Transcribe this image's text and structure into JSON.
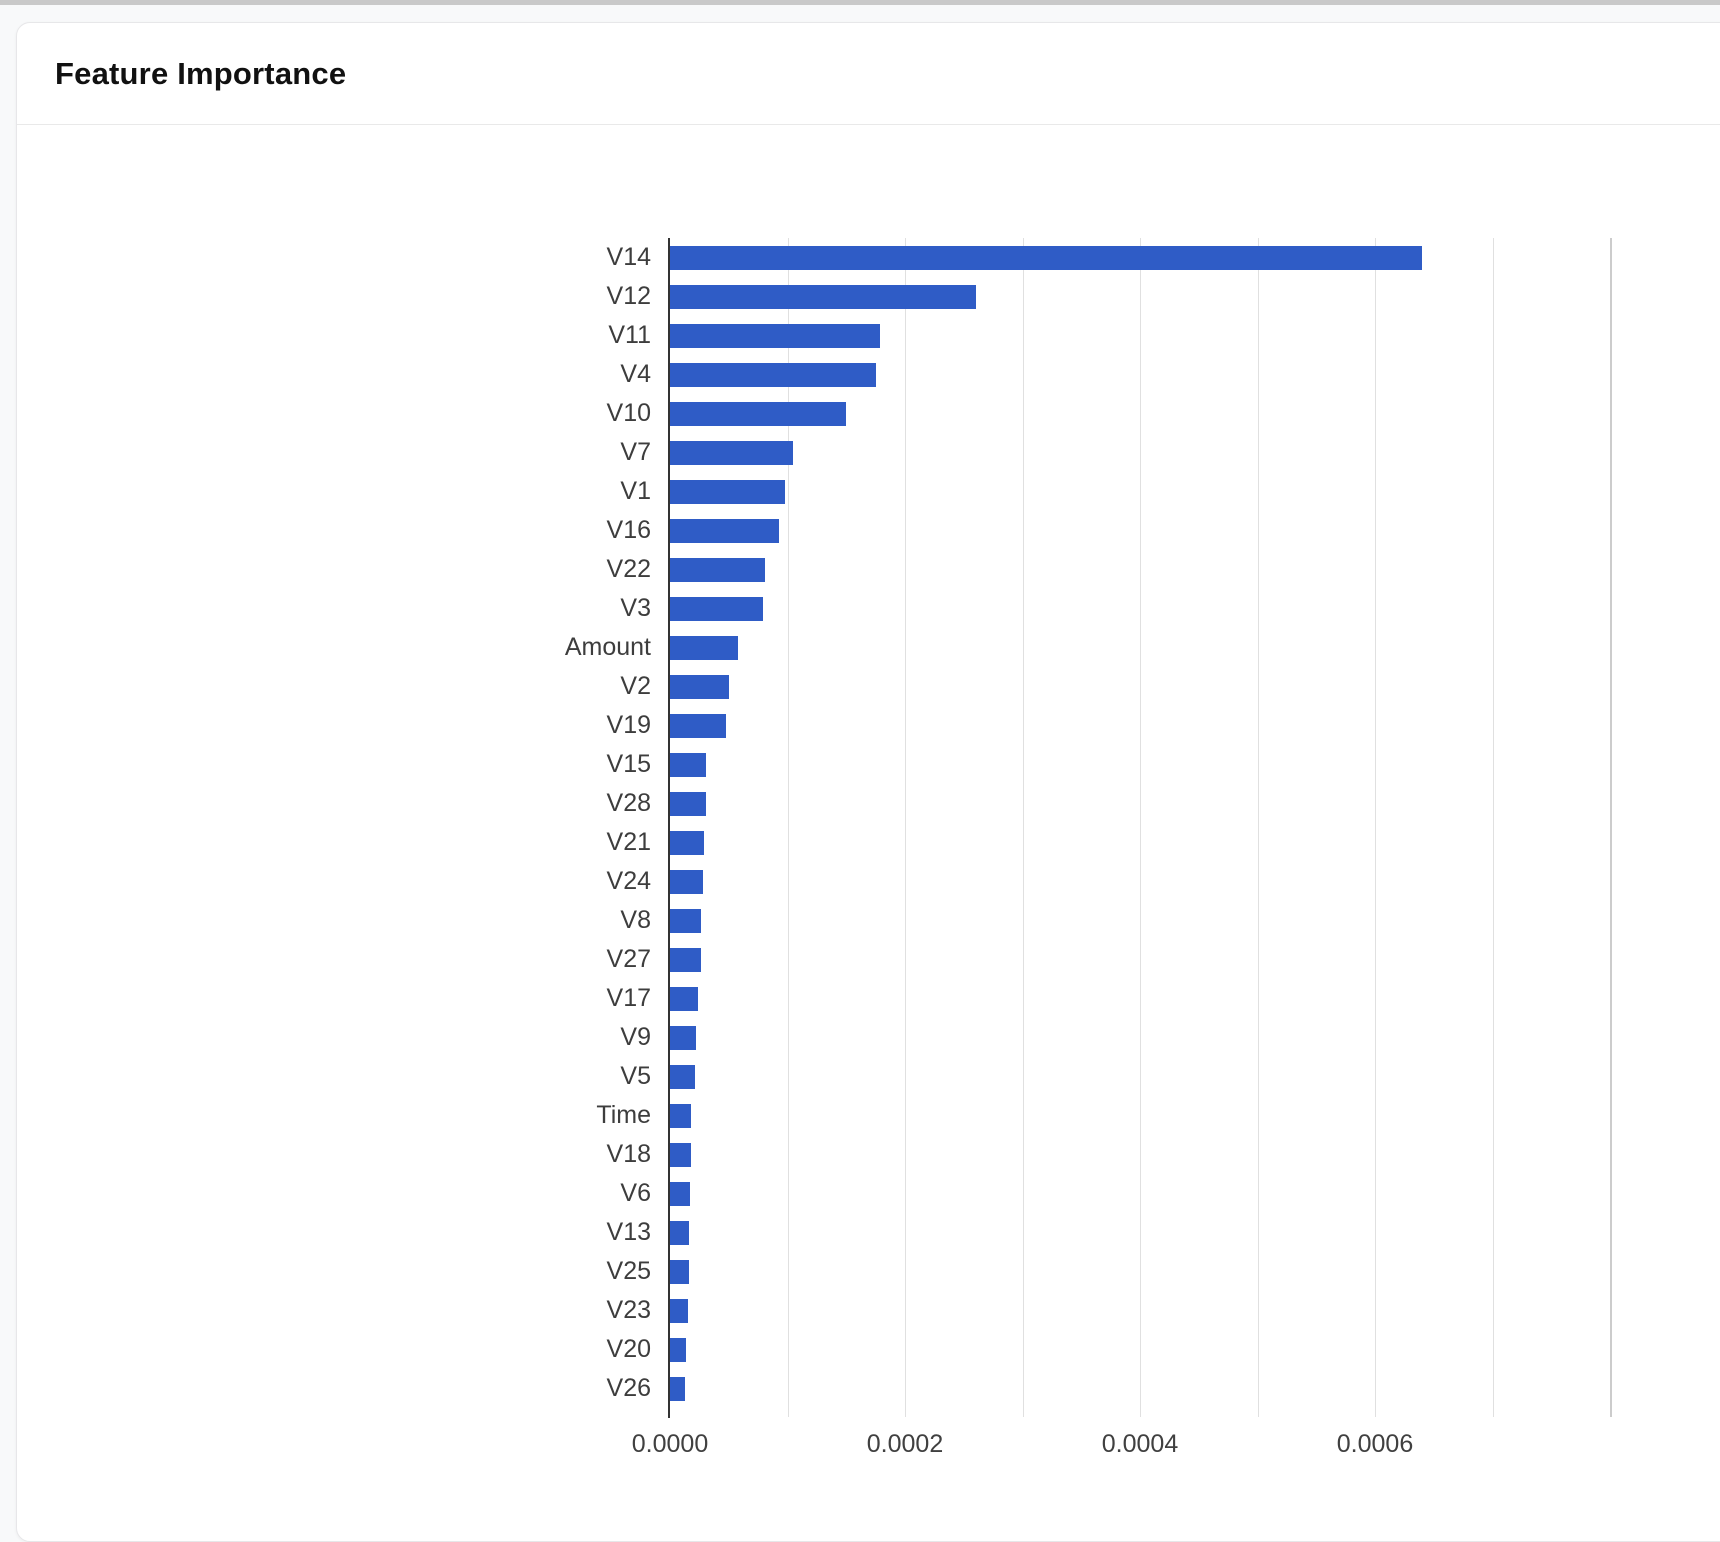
{
  "page": {
    "title": "Feature Importance"
  },
  "colors": {
    "bar": "#2f5cc6",
    "axis_line": "#333333",
    "gridline": "#e0e0e0",
    "gridline_edge": "#cccccc",
    "top_strip": "#c9c9c9",
    "card_background": "#ffffff",
    "page_background": "#f8f9fa"
  },
  "chart_data": {
    "type": "bar",
    "orientation": "horizontal",
    "title": "Feature Importance",
    "xlabel": "",
    "ylabel": "",
    "xlim": [
      0,
      0.0008
    ],
    "gridline_interval": 0.0001,
    "grid": true,
    "legend": "none",
    "x_ticks": [
      {
        "label": "0.0000",
        "value": 0.0
      },
      {
        "label": "0.0002",
        "value": 0.0002
      },
      {
        "label": "0.0004",
        "value": 0.0004
      },
      {
        "label": "0.0006",
        "value": 0.0006
      }
    ],
    "categories": [
      "V14",
      "V12",
      "V11",
      "V4",
      "V10",
      "V7",
      "V1",
      "V16",
      "V22",
      "V3",
      "Amount",
      "V2",
      "V19",
      "V15",
      "V28",
      "V21",
      "V24",
      "V8",
      "V27",
      "V17",
      "V9",
      "V5",
      "Time",
      "V18",
      "V6",
      "V13",
      "V25",
      "V23",
      "V20",
      "V26"
    ],
    "values": [
      0.00064,
      0.00026,
      0.000179,
      0.000175,
      0.00015,
      0.000105,
      9.8e-05,
      9.3e-05,
      8.1e-05,
      7.9e-05,
      5.8e-05,
      5e-05,
      4.8e-05,
      3.1e-05,
      3.1e-05,
      2.9e-05,
      2.8e-05,
      2.6e-05,
      2.6e-05,
      2.4e-05,
      2.2e-05,
      2.1e-05,
      1.8e-05,
      1.8e-05,
      1.7e-05,
      1.6e-05,
      1.6e-05,
      1.5e-05,
      1.4e-05,
      1.3e-05
    ]
  }
}
